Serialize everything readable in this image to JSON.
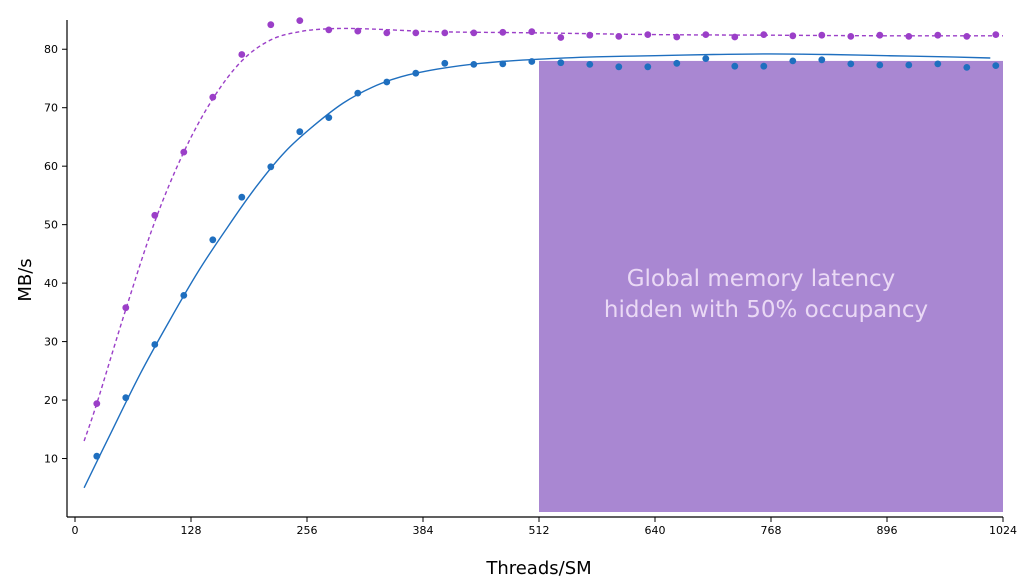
{
  "chart_data": {
    "type": "scatter",
    "xlabel": "Threads/SM",
    "ylabel": "MB/s",
    "xlim": [
      0,
      1024
    ],
    "ylim": [
      0,
      85
    ],
    "x_ticks": [
      0,
      128,
      256,
      384,
      512,
      640,
      768,
      896,
      1024
    ],
    "y_ticks": [
      10,
      20,
      30,
      40,
      50,
      60,
      70,
      80
    ],
    "grid": false,
    "legend": "none",
    "series": [
      {
        "color": "#9b3fc8",
        "trend_style": "dashed",
        "points": [
          [
            24,
            19.4
          ],
          [
            56,
            35.8
          ],
          [
            88,
            51.6
          ],
          [
            120,
            62.4
          ],
          [
            152,
            71.8
          ],
          [
            184,
            79.1
          ],
          [
            216,
            84.2
          ],
          [
            248,
            84.9
          ],
          [
            280,
            83.3
          ],
          [
            312,
            83.1
          ],
          [
            344,
            82.8
          ],
          [
            376,
            82.8
          ],
          [
            408,
            82.8
          ],
          [
            440,
            82.8
          ],
          [
            472,
            82.9
          ],
          [
            504,
            83.0
          ],
          [
            536,
            82.0
          ],
          [
            568,
            82.4
          ],
          [
            600,
            82.2
          ],
          [
            632,
            82.5
          ],
          [
            664,
            82.1
          ],
          [
            696,
            82.5
          ],
          [
            728,
            82.1
          ],
          [
            760,
            82.5
          ],
          [
            792,
            82.3
          ],
          [
            824,
            82.4
          ],
          [
            856,
            82.2
          ],
          [
            888,
            82.4
          ],
          [
            920,
            82.2
          ],
          [
            952,
            82.4
          ],
          [
            984,
            82.2
          ],
          [
            1016,
            82.5
          ]
        ],
        "trend": [
          [
            10,
            13.0
          ],
          [
            24,
            19.4
          ],
          [
            56,
            35.5
          ],
          [
            88,
            50.5
          ],
          [
            120,
            62.4
          ],
          [
            152,
            71.5
          ],
          [
            184,
            78.0
          ],
          [
            216,
            81.6
          ],
          [
            248,
            83.0
          ],
          [
            280,
            83.5
          ],
          [
            320,
            83.5
          ],
          [
            400,
            83.0
          ],
          [
            512,
            82.8
          ],
          [
            640,
            82.5
          ],
          [
            768,
            82.4
          ],
          [
            896,
            82.3
          ],
          [
            1024,
            82.3
          ]
        ]
      },
      {
        "color": "#1f6fbf",
        "trend_style": "solid",
        "points": [
          [
            24,
            10.4
          ],
          [
            56,
            20.4
          ],
          [
            88,
            29.5
          ],
          [
            120,
            37.9
          ],
          [
            152,
            47.4
          ],
          [
            184,
            54.7
          ],
          [
            216,
            59.9
          ],
          [
            248,
            65.9
          ],
          [
            280,
            68.3
          ],
          [
            312,
            72.5
          ],
          [
            344,
            74.4
          ],
          [
            376,
            75.9
          ],
          [
            408,
            77.6
          ],
          [
            440,
            77.4
          ],
          [
            472,
            77.5
          ],
          [
            504,
            77.9
          ],
          [
            536,
            77.7
          ],
          [
            568,
            77.4
          ],
          [
            600,
            77.0
          ],
          [
            632,
            77.0
          ],
          [
            664,
            77.6
          ],
          [
            696,
            78.4
          ],
          [
            728,
            77.1
          ],
          [
            760,
            77.1
          ],
          [
            792,
            78.0
          ],
          [
            824,
            78.2
          ],
          [
            856,
            77.5
          ],
          [
            888,
            77.3
          ],
          [
            920,
            77.3
          ],
          [
            952,
            77.5
          ],
          [
            984,
            76.9
          ],
          [
            1016,
            77.2
          ]
        ],
        "trend": [
          [
            10,
            5.0
          ],
          [
            40,
            14.5
          ],
          [
            72,
            24.5
          ],
          [
            104,
            33.5
          ],
          [
            136,
            42.0
          ],
          [
            168,
            49.5
          ],
          [
            200,
            56.5
          ],
          [
            232,
            62.5
          ],
          [
            264,
            67.0
          ],
          [
            296,
            70.8
          ],
          [
            328,
            73.5
          ],
          [
            360,
            75.3
          ],
          [
            400,
            76.6
          ],
          [
            448,
            77.6
          ],
          [
            512,
            78.3
          ],
          [
            576,
            78.7
          ],
          [
            640,
            78.9
          ],
          [
            704,
            79.1
          ],
          [
            768,
            79.2
          ],
          [
            832,
            79.1
          ],
          [
            896,
            78.9
          ],
          [
            960,
            78.7
          ],
          [
            1010,
            78.5
          ]
        ]
      }
    ],
    "shaded_region": {
      "x_range": [
        512,
        1024
      ],
      "y_range": [
        0,
        78
      ],
      "color": "#a987d2",
      "label_lines": [
        "Global memory latency",
        "hidden with 50% occupancy"
      ]
    }
  }
}
